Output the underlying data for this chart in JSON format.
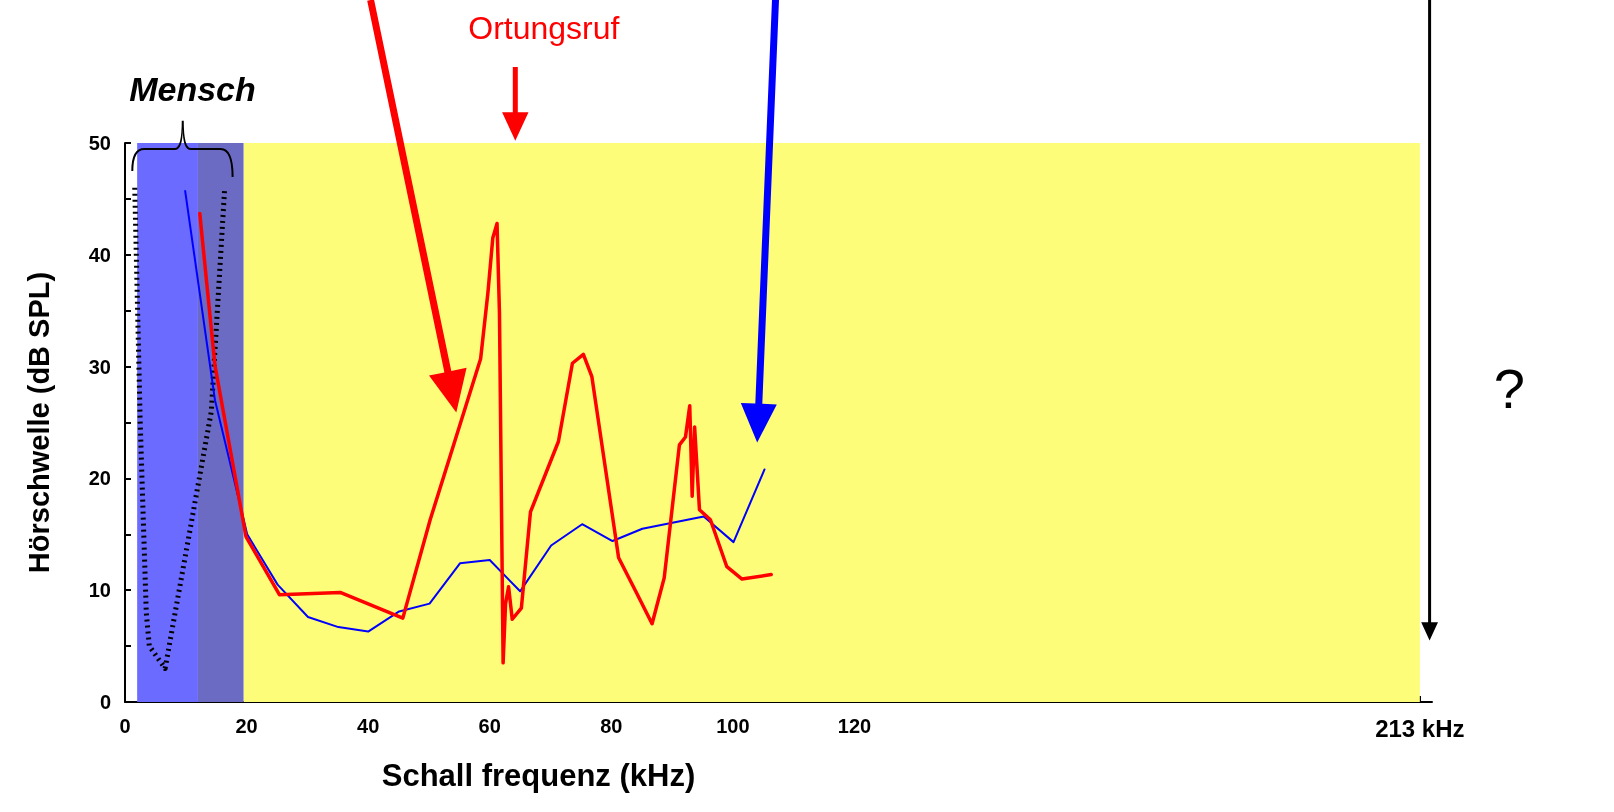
{
  "chart_data": {
    "type": "line",
    "xlabel": "Schall frequenz (kHz)",
    "ylabel": "Hörschwelle (dB SPL)",
    "annotations": [
      "Mensch",
      "Ortungsruf",
      "?"
    ],
    "series": [
      {
        "color": "#000000",
        "line_style": "dotted",
        "x": [
          1.6,
          2.5,
          3.5,
          4,
          6.6,
          14.2,
          16.4
        ],
        "values": [
          46,
          25,
          8,
          5,
          3,
          26,
          46
        ]
      },
      {
        "color": "#0000ff",
        "x": [
          9.9,
          14.8,
          20.1,
          25.1,
          30.1,
          35.1,
          40,
          45.1,
          50.1,
          55.1,
          60,
          65,
          70.1,
          75.2,
          80.2,
          85.1,
          95.2,
          100.1,
          105.2
        ],
        "values": [
          45.7,
          27,
          15,
          10.5,
          7.6,
          6.7,
          6.3,
          8.1,
          8.8,
          12.4,
          12.7,
          9.9,
          14,
          15.9,
          14.4,
          15.5,
          16.6,
          14.3,
          20.8
        ]
      },
      {
        "color": "#ff0000",
        "x": [
          12.3,
          14.8,
          19.9,
          25.4,
          35.4,
          45.7,
          50.2,
          58.5,
          59.7,
          60.5,
          61.2,
          61.6,
          62.2,
          62.6,
          63.1,
          63.7,
          65.2,
          66.7,
          71.3,
          73.6,
          75.4,
          76.8,
          81.2,
          84.2,
          86.7,
          88.7,
          91.2,
          92.2,
          92.9,
          93.3,
          93.7,
          94.5,
          96.3,
          99,
          101.5,
          106.3
        ],
        "values": [
          43.7,
          30.1,
          14.8,
          9.6,
          9.8,
          7.5,
          16.3,
          30.7,
          36.6,
          41.5,
          42.8,
          34.8,
          3.5,
          8.8,
          10.3,
          7.4,
          8.4,
          17,
          23.3,
          30.3,
          31.1,
          29.1,
          12.9,
          9.7,
          7,
          11.1,
          23,
          23.7,
          26.5,
          18.4,
          24.6,
          17.2,
          16.3,
          12.1,
          11,
          11.4
        ]
      }
    ],
    "bands": [
      {
        "axis": "x",
        "from": 19.5,
        "to": 213,
        "color": "#fdfd79"
      },
      {
        "axis": "x",
        "from": 2,
        "to": 12,
        "color": "#6b6bff"
      },
      {
        "axis": "x",
        "from": 12,
        "to": 19.5,
        "color": "#6b6bc4"
      }
    ],
    "xlim": [
      0,
      215
    ],
    "xticks": [
      0,
      {
        "value": 10,
        "label": null
      },
      20,
      {
        "value": 30,
        "label": null
      },
      40,
      {
        "value": 50,
        "label": null
      },
      60,
      {
        "value": 70,
        "label": null
      },
      80,
      {
        "value": 90,
        "label": null
      },
      100,
      {
        "value": 110,
        "label": null
      },
      120,
      {
        "value": 213,
        "label": "213 kHz"
      }
    ],
    "ylim": [
      0,
      50
    ],
    "yticks": [
      0,
      {
        "value": 5,
        "label": null
      },
      10,
      {
        "value": 15,
        "label": null
      },
      20,
      {
        "value": 25,
        "label": null
      },
      30,
      {
        "value": 35,
        "label": null
      },
      40,
      {
        "value": 45,
        "label": null
      },
      50
    ],
    "grid": false,
    "marker": "none"
  }
}
